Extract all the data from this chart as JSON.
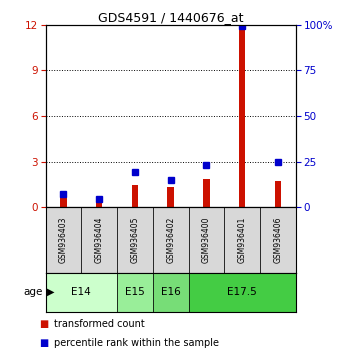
{
  "title": "GDS4591 / 1440676_at",
  "samples": [
    "GSM936403",
    "GSM936404",
    "GSM936405",
    "GSM936402",
    "GSM936400",
    "GSM936401",
    "GSM936406"
  ],
  "transformed_count": [
    1.0,
    0.35,
    1.45,
    1.35,
    1.85,
    12.0,
    1.7
  ],
  "percentile_rank_scaled": [
    0.85,
    0.55,
    2.3,
    1.8,
    2.8,
    11.9,
    3.0
  ],
  "age_groups": [
    {
      "label": "E14",
      "start": 0,
      "end": 2,
      "color": "#ccffcc"
    },
    {
      "label": "E15",
      "start": 2,
      "end": 3,
      "color": "#99ee99"
    },
    {
      "label": "E16",
      "start": 3,
      "end": 4,
      "color": "#77dd77"
    },
    {
      "label": "E17.5",
      "start": 4,
      "end": 7,
      "color": "#44cc44"
    }
  ],
  "ylim_left": [
    0,
    12
  ],
  "ylim_right": [
    0,
    100
  ],
  "yticks_left": [
    0,
    3,
    6,
    9,
    12
  ],
  "yticks_right": [
    0,
    25,
    50,
    75,
    100
  ],
  "bar_color_red": "#cc1100",
  "marker_color_blue": "#0000cc",
  "bg_color": "#d8d8d8",
  "left_axis_color": "#cc1100",
  "right_axis_color": "#0000cc",
  "fig_width": 3.38,
  "fig_height": 3.54,
  "dpi": 100
}
